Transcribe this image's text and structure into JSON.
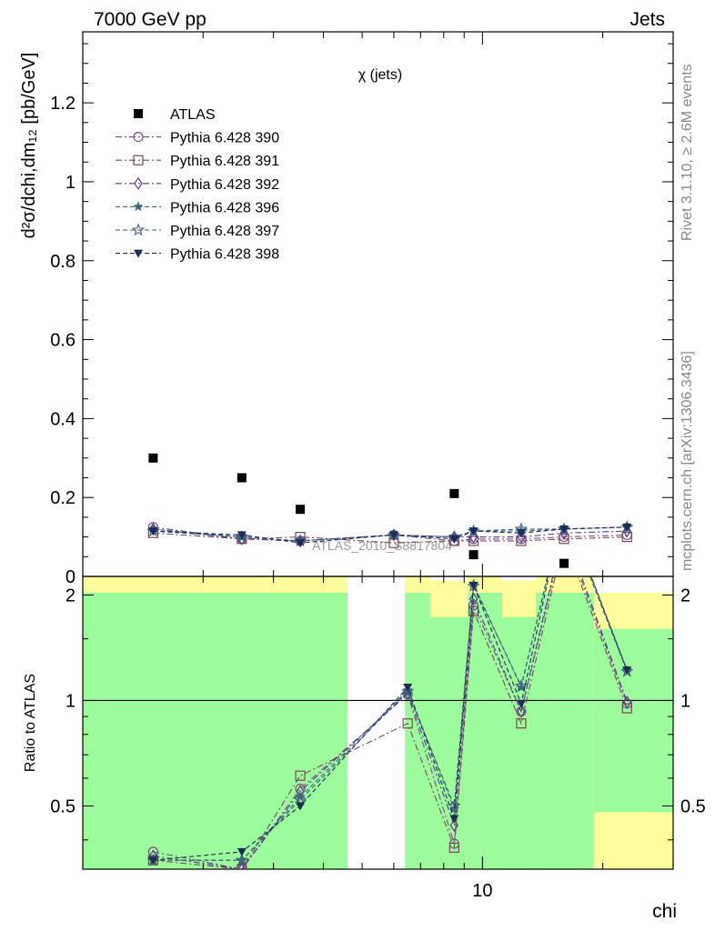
{
  "header": {
    "left": "7000 GeV pp",
    "right": "Jets"
  },
  "side_text": {
    "rivet": "Rivet 3.1.10, ≥ 2.6M events",
    "mcplots": "mcplots.cern.ch [arXiv:1306.3436]"
  },
  "chart_data": [
    {
      "type": "scatter",
      "panel": "main",
      "title": "χ (jets)",
      "watermark": "ATLAS_2010_S8817804",
      "xlabel": "chi",
      "ylabel": "d²σ/dchi,dm₁₂ [pb/GeV]",
      "xscale": "log",
      "xlim": [
        1.0,
        30.0
      ],
      "ylim": [
        0,
        1.38
      ],
      "x_ticks": [
        10
      ],
      "x_tick_labels": [
        "10"
      ],
      "y_ticks": [
        0,
        0.2,
        0.4,
        0.6,
        0.8,
        1,
        1.2
      ],
      "y_tick_labels": [
        "0",
        "0.2",
        "0.4",
        "0.6",
        "0.8",
        "1",
        "1.2"
      ],
      "legend_position": "top-left",
      "x": [
        1.5,
        2.5,
        3.5,
        6.0,
        8.5,
        9.5,
        12.5,
        16.0,
        23.0
      ],
      "series": [
        {
          "name": "ATLAS",
          "values": [
            0.3,
            0.25,
            0.17,
            null,
            0.21,
            0.055,
            null,
            0.033,
            null
          ],
          "color": "#000000",
          "marker": "square-filled",
          "line": "none"
        },
        {
          "name": "Pythia 6.428 390",
          "values": [
            0.125,
            0.095,
            0.09,
            0.105,
            0.09,
            0.095,
            0.095,
            0.1,
            0.105
          ],
          "color": "#7a4e8a",
          "marker": "circle-open",
          "line": "dashdot"
        },
        {
          "name": "Pythia 6.428 391",
          "values": [
            0.11,
            0.095,
            0.1,
            0.085,
            0.09,
            0.09,
            0.09,
            0.095,
            0.1
          ],
          "color": "#7a4a55",
          "marker": "square-open",
          "line": "dashdot"
        },
        {
          "name": "Pythia 6.428 392",
          "values": [
            0.12,
            0.095,
            0.09,
            0.105,
            0.1,
            0.1,
            0.1,
            0.11,
            0.115
          ],
          "color": "#5b3a8c",
          "marker": "diamond-open",
          "line": "dashdot"
        },
        {
          "name": "Pythia 6.428 396",
          "values": [
            0.12,
            0.1,
            0.09,
            0.105,
            0.1,
            0.115,
            0.115,
            0.12,
            0.125
          ],
          "color": "#3d6e80",
          "marker": "star-filled",
          "line": "dashed"
        },
        {
          "name": "Pythia 6.428 397",
          "values": [
            0.115,
            0.1,
            0.09,
            0.105,
            0.1,
            0.115,
            0.12,
            0.12,
            0.125
          ],
          "color": "#3e5f7a",
          "marker": "star-open",
          "line": "dashed"
        },
        {
          "name": "Pythia 6.428 398",
          "values": [
            0.115,
            0.105,
            0.085,
            0.105,
            0.095,
            0.115,
            0.11,
            0.12,
            0.125
          ],
          "color": "#1c2d55",
          "marker": "triangle-down-filled",
          "line": "dashed"
        }
      ]
    },
    {
      "type": "line",
      "panel": "ratio",
      "ylabel": "Ratio to ATLAS",
      "xlabel": "chi",
      "xscale": "log",
      "xlim": [
        1.0,
        30.0
      ],
      "ylim": [
        0.33,
        2.26
      ],
      "yscale": "log",
      "y_ticks": [
        0.5,
        1,
        2
      ],
      "y_tick_labels": [
        "0.5",
        "1",
        "2"
      ],
      "reference_line": 1,
      "bands": [
        {
          "x_range": [
            1.0,
            4.6
          ],
          "inner": 2.03,
          "outer": 2.26
        },
        {
          "x_range": [
            6.4,
            7.4
          ],
          "inner": 2.03,
          "outer": 2.26
        },
        {
          "x_range": [
            7.4,
            9.2
          ],
          "inner": 1.73,
          "outer": 2.2
        },
        {
          "x_range": [
            9.2,
            11.2
          ],
          "inner": 2.03,
          "outer": 2.26
        },
        {
          "x_range": [
            11.2,
            13.6
          ],
          "inner": 1.73,
          "outer": 2.2
        },
        {
          "x_range": [
            13.6,
            19.0
          ],
          "inner": 2.03,
          "outer": 2.26
        },
        {
          "x_range": [
            19.0,
            30.0
          ],
          "inner": 1.6,
          "outer": 2.03,
          "low_outer": 0.48
        }
      ],
      "x": [
        1.5,
        2.5,
        3.5,
        6.5,
        8.5,
        9.5,
        12.5,
        16.0,
        23.0
      ],
      "series": [
        {
          "name": "Pythia 6.428 390",
          "values": [
            0.37,
            0.33,
            0.56,
            1.04,
            0.39,
            1.87,
            0.93,
            3.0,
            0.98
          ],
          "color": "#7a4e8a",
          "marker": "circle-open",
          "line": "dashdot"
        },
        {
          "name": "Pythia 6.428 391",
          "values": [
            0.35,
            0.33,
            0.61,
            0.86,
            0.38,
            1.8,
            0.86,
            2.9,
            0.95
          ],
          "color": "#7a4a55",
          "marker": "square-open",
          "line": "dashdot"
        },
        {
          "name": "Pythia 6.428 392",
          "values": [
            0.36,
            0.33,
            0.55,
            1.05,
            0.44,
            1.95,
            0.93,
            3.1,
            0.99
          ],
          "color": "#5b3a8c",
          "marker": "diamond-open",
          "line": "dashdot"
        },
        {
          "name": "Pythia 6.428 396",
          "values": [
            0.35,
            0.35,
            0.53,
            1.07,
            0.49,
            2.15,
            1.09,
            3.6,
            1.22
          ],
          "color": "#3d6e80",
          "marker": "star-filled",
          "line": "dashed"
        },
        {
          "name": "Pythia 6.428 397",
          "values": [
            0.35,
            0.35,
            0.52,
            1.06,
            0.5,
            2.12,
            1.1,
            3.5,
            1.21
          ],
          "color": "#3e5f7a",
          "marker": "star-open",
          "line": "dashed"
        },
        {
          "name": "Pythia 6.428 398",
          "values": [
            0.35,
            0.37,
            0.5,
            1.09,
            0.46,
            2.13,
            0.98,
            3.6,
            1.22
          ],
          "color": "#1c2d55",
          "marker": "triangle-down-filled",
          "line": "dashed"
        }
      ]
    }
  ],
  "colors": {
    "band_inner": "#9cfc9c",
    "band_outer": "#fcfc9c",
    "axis": "#000000",
    "side_text": "#888888"
  }
}
